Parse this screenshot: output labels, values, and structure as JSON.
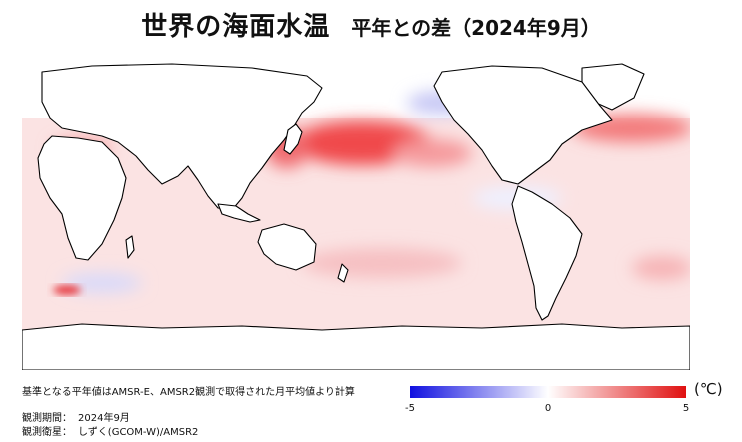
{
  "title": "世界の海面水温",
  "subtitle": "平年との差（2024年9月）",
  "note": "基準となる平年値はAMSR-E、AMSR2観測で取得された月平均値より計算",
  "meta": [
    {
      "label": "観測期間：",
      "value": "2024年9月"
    },
    {
      "label": "観測衛星：",
      "value": "しずく(GCOM-W)/AMSR2"
    }
  ],
  "colorbar": {
    "min": -5,
    "max": 5,
    "ticks": [
      "-5",
      "0",
      "5"
    ],
    "unit": "(℃)",
    "colors": {
      "negative": "#1010e0",
      "neutral": "#ffffff",
      "positive": "#e01010"
    }
  },
  "map": {
    "land_color": "#ffffff",
    "coast_color": "#000000",
    "anomaly_pattern": "strong warm anomaly in North Pacific, warm North Atlantic, mostly slightly warm elsewhere"
  }
}
